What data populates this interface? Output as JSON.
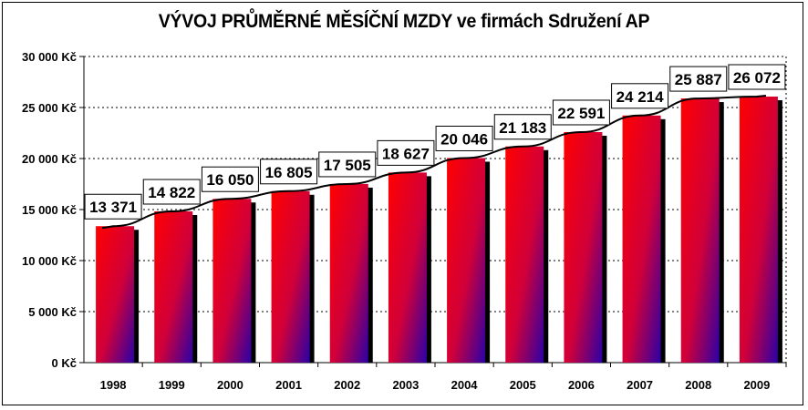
{
  "chart_data": {
    "type": "bar",
    "title": "VÝVOJ PRŮMĚRNÉ MĚSÍČNÍ MZDY ve firmách Sdružení AP",
    "categories": [
      "1998",
      "1999",
      "2000",
      "2001",
      "2002",
      "2003",
      "2004",
      "2005",
      "2006",
      "2007",
      "2008",
      "2009"
    ],
    "values": [
      13371,
      14822,
      16050,
      16805,
      17505,
      18627,
      20046,
      21183,
      22591,
      24214,
      25887,
      26072
    ],
    "data_labels": [
      "13 371",
      "14 822",
      "16 050",
      "16 805",
      "17 505",
      "18 627",
      "20 046",
      "21 183",
      "22 591",
      "24 214",
      "25 887",
      "26 072"
    ],
    "y_ticks": [
      0,
      5000,
      10000,
      15000,
      20000,
      25000,
      30000
    ],
    "y_tick_labels": [
      "0 Kč",
      "5 000 Kč",
      "10 000 Kč",
      "15 000 Kč",
      "20 000 Kč",
      "25 000 Kč",
      "30 000 Kč"
    ],
    "ylim": [
      0,
      30000
    ],
    "grid": true,
    "trendline": true,
    "xlabel": "",
    "ylabel": "",
    "colors": {
      "bar_top": "#ff0000",
      "bar_bottom": "#2a00a8",
      "shadow": "#000000"
    }
  }
}
